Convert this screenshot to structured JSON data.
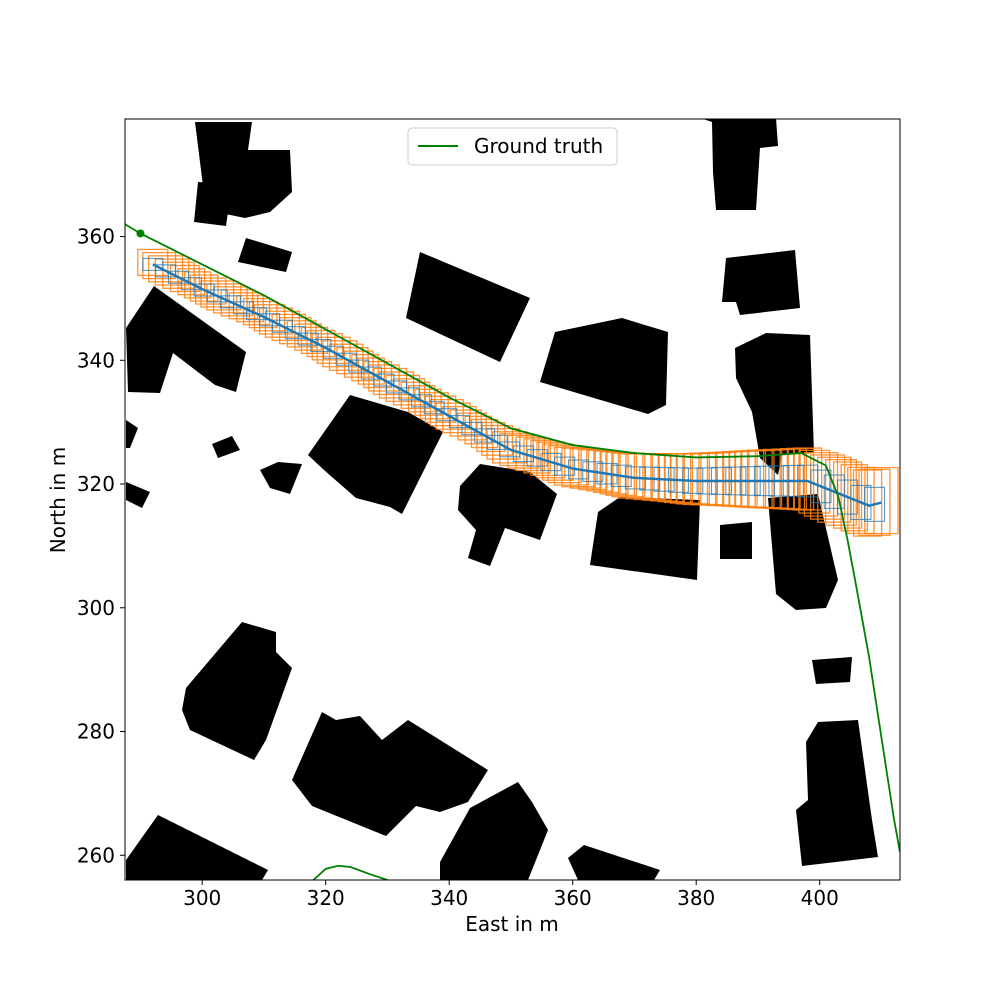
{
  "chart_data": {
    "type": "line",
    "xlabel": "East in m",
    "ylabel": "North in m",
    "xlim": [
      287.5,
      413
    ],
    "ylim": [
      256,
      379
    ],
    "xticks": [
      300,
      320,
      340,
      360,
      380,
      400
    ],
    "yticks": [
      260,
      280,
      300,
      320,
      340,
      360
    ],
    "grid": false,
    "legend": {
      "placement": "top-center",
      "entries": [
        {
          "label": "Ground truth",
          "color": "#008000"
        }
      ]
    },
    "colors": {
      "ground_truth": "#008000",
      "estimate_boxes": "#ff7f0e",
      "estimate_track": "#1f77b4",
      "buildings": "#000000"
    },
    "series": [
      {
        "name": "Ground truth",
        "points": [
          [
            287.5,
            362
          ],
          [
            290,
            360.5
          ],
          [
            294,
            358.5
          ],
          [
            300,
            355.5
          ],
          [
            310,
            350.5
          ],
          [
            320,
            345
          ],
          [
            330,
            339.5
          ],
          [
            340,
            334
          ],
          [
            350,
            329
          ],
          [
            360,
            326.3
          ],
          [
            370,
            325
          ],
          [
            380,
            324.3
          ],
          [
            390,
            324.5
          ],
          [
            397,
            325
          ],
          [
            401,
            323
          ],
          [
            403,
            318
          ],
          [
            404.5,
            311
          ],
          [
            406,
            303
          ],
          [
            408,
            292
          ],
          [
            410,
            279
          ],
          [
            412,
            266
          ],
          [
            413,
            260.5
          ]
        ]
      },
      {
        "name": "",
        "points": [
          [
            318,
            256
          ],
          [
            320,
            257.8
          ],
          [
            322,
            258.3
          ],
          [
            324,
            258.1
          ],
          [
            327,
            257
          ],
          [
            330,
            256
          ]
        ]
      }
    ],
    "estimate_track": [
      [
        292,
        355.5
      ],
      [
        300,
        351.5
      ],
      [
        310,
        347
      ],
      [
        320,
        342
      ],
      [
        330,
        336.5
      ],
      [
        340,
        331
      ],
      [
        350,
        325.5
      ],
      [
        360,
        322.5
      ],
      [
        370,
        321
      ],
      [
        380,
        320.5
      ],
      [
        390,
        320.5
      ],
      [
        398,
        320.5
      ],
      [
        403,
        318.5
      ],
      [
        408,
        316.5
      ],
      [
        410,
        317
      ]
    ],
    "buildings": [
      [
        [
          195,
          122
        ],
        [
          252,
          122
        ],
        [
          248,
          150
        ],
        [
          290,
          150
        ],
        [
          292,
          192
        ],
        [
          270,
          212
        ],
        [
          245,
          218
        ],
        [
          206,
          210
        ]
      ],
      [
        [
          198,
          182
        ],
        [
          232,
          184
        ],
        [
          226,
          226
        ],
        [
          194,
          222
        ]
      ],
      [
        [
          246,
          238
        ],
        [
          292,
          252
        ],
        [
          286,
          272
        ],
        [
          238,
          262
        ]
      ],
      [
        [
          420,
          252
        ],
        [
          530,
          298
        ],
        [
          500,
          362
        ],
        [
          406,
          318
        ]
      ],
      [
        [
          555,
          332
        ],
        [
          622,
          318
        ],
        [
          668,
          332
        ],
        [
          666,
          405
        ],
        [
          648,
          414
        ],
        [
          540,
          382
        ]
      ],
      [
        [
          700,
          118
        ],
        [
          776,
          118
        ],
        [
          778,
          146
        ],
        [
          760,
          148
        ],
        [
          756,
          210
        ],
        [
          716,
          210
        ],
        [
          713,
          172
        ],
        [
          712,
          122
        ]
      ],
      [
        [
          726,
          258
        ],
        [
          795,
          250
        ],
        [
          800,
          308
        ],
        [
          740,
          315
        ],
        [
          736,
          302
        ],
        [
          722,
          302
        ]
      ],
      [
        [
          735,
          348
        ],
        [
          766,
          333
        ],
        [
          810,
          335
        ],
        [
          814,
          453
        ],
        [
          782,
          455
        ],
        [
          778,
          475
        ],
        [
          760,
          458
        ],
        [
          752,
          412
        ],
        [
          736,
          378
        ]
      ],
      [
        [
          768,
          498
        ],
        [
          818,
          494
        ],
        [
          838,
          580
        ],
        [
          826,
          608
        ],
        [
          796,
          610
        ],
        [
          776,
          594
        ]
      ],
      [
        [
          812,
          660
        ],
        [
          852,
          657
        ],
        [
          850,
          682
        ],
        [
          816,
          684
        ]
      ],
      [
        [
          806,
          742
        ],
        [
          818,
          722
        ],
        [
          858,
          720
        ],
        [
          872,
          820
        ],
        [
          878,
          857
        ],
        [
          802,
          866
        ],
        [
          796,
          810
        ],
        [
          808,
          800
        ]
      ],
      [
        [
          720,
          525
        ],
        [
          752,
          522
        ],
        [
          752,
          559
        ],
        [
          720,
          559
        ]
      ],
      [
        [
          598,
          512
        ],
        [
          620,
          497
        ],
        [
          700,
          500
        ],
        [
          697,
          580
        ],
        [
          590,
          565
        ]
      ],
      [
        [
          460,
          486
        ],
        [
          480,
          464
        ],
        [
          530,
          472
        ],
        [
          557,
          494
        ],
        [
          540,
          540
        ],
        [
          505,
          528
        ],
        [
          490,
          566
        ],
        [
          468,
          558
        ],
        [
          476,
          530
        ],
        [
          458,
          510
        ]
      ],
      [
        [
          308,
          455
        ],
        [
          350,
          395
        ],
        [
          408,
          412
        ],
        [
          443,
          432
        ],
        [
          402,
          514
        ],
        [
          390,
          507
        ],
        [
          356,
          498
        ],
        [
          324,
          470
        ]
      ],
      [
        [
          126,
          328
        ],
        [
          154,
          286
        ],
        [
          246,
          352
        ],
        [
          236,
          392
        ],
        [
          215,
          385
        ],
        [
          173,
          353
        ],
        [
          160,
          393
        ],
        [
          128,
          392
        ]
      ],
      [
        [
          126,
          420
        ],
        [
          138,
          428
        ],
        [
          130,
          448
        ],
        [
          126,
          448
        ]
      ],
      [
        [
          126,
          482
        ],
        [
          150,
          492
        ],
        [
          142,
          508
        ],
        [
          126,
          500
        ]
      ],
      [
        [
          212,
          444
        ],
        [
          232,
          436
        ],
        [
          240,
          450
        ],
        [
          218,
          458
        ]
      ],
      [
        [
          260,
          470
        ],
        [
          278,
          462
        ],
        [
          302,
          464
        ],
        [
          290,
          494
        ],
        [
          270,
          488
        ]
      ],
      [
        [
          186,
          688
        ],
        [
          242,
          622
        ],
        [
          276,
          632
        ],
        [
          276,
          652
        ],
        [
          292,
          668
        ],
        [
          266,
          740
        ],
        [
          254,
          760
        ],
        [
          190,
          730
        ],
        [
          182,
          710
        ]
      ],
      [
        [
          292,
          780
        ],
        [
          322,
          712
        ],
        [
          336,
          720
        ],
        [
          360,
          716
        ],
        [
          382,
          740
        ],
        [
          408,
          720
        ],
        [
          488,
          770
        ],
        [
          468,
          802
        ],
        [
          440,
          812
        ],
        [
          416,
          806
        ],
        [
          386,
          836
        ],
        [
          312,
          806
        ]
      ],
      [
        [
          440,
          862
        ],
        [
          470,
          808
        ],
        [
          518,
          782
        ],
        [
          532,
          802
        ],
        [
          548,
          830
        ],
        [
          528,
          880
        ],
        [
          440,
          880
        ]
      ],
      [
        [
          126,
          880
        ],
        [
          126,
          860
        ],
        [
          158,
          815
        ],
        [
          268,
          870
        ],
        [
          262,
          880
        ]
      ],
      [
        [
          568,
          858
        ],
        [
          584,
          845
        ],
        [
          660,
          870
        ],
        [
          654,
          880
        ],
        [
          578,
          880
        ]
      ]
    ]
  }
}
